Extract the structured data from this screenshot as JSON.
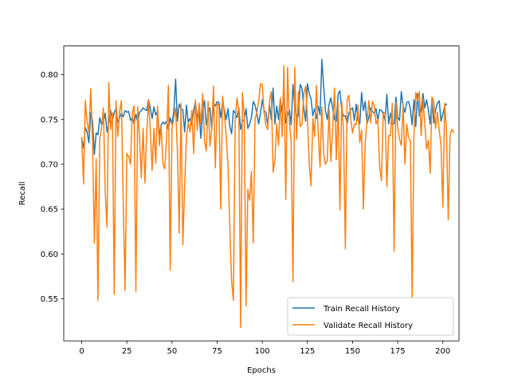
{
  "chart_data": {
    "type": "line",
    "title": "",
    "xlabel": "Epochs",
    "ylabel": "Recall",
    "xlim": [
      -9.95,
      208.95
    ],
    "ylim": [
      0.503,
      0.832
    ],
    "xticks": [
      0,
      25,
      50,
      75,
      100,
      125,
      150,
      175,
      200
    ],
    "xtick_labels": [
      "0",
      "25",
      "50",
      "75",
      "100",
      "125",
      "150",
      "175",
      "200"
    ],
    "yticks": [
      0.55,
      0.6,
      0.65,
      0.7,
      0.75,
      0.8
    ],
    "ytick_labels": [
      "0.55",
      "0.60",
      "0.65",
      "0.70",
      "0.75",
      "0.80"
    ],
    "grid": false,
    "legend_position": "lower-right",
    "series": [
      {
        "name": "Train Recall History",
        "color": "#1f77b4",
        "x_start": 0,
        "x_step": 1,
        "values": [
          0.729,
          0.718,
          0.741,
          0.736,
          0.724,
          0.758,
          0.748,
          0.711,
          0.735,
          0.733,
          0.752,
          0.744,
          0.747,
          0.757,
          0.736,
          0.747,
          0.76,
          0.749,
          0.758,
          0.762,
          0.747,
          0.752,
          0.757,
          0.753,
          0.76,
          0.758,
          0.759,
          0.749,
          0.752,
          0.745,
          0.756,
          0.747,
          0.758,
          0.76,
          0.763,
          0.761,
          0.76,
          0.772,
          0.762,
          0.751,
          0.764,
          0.755,
          0.759,
          0.732,
          0.744,
          0.747,
          0.745,
          0.748,
          0.739,
          0.752,
          0.745,
          0.759,
          0.795,
          0.748,
          0.767,
          0.762,
          0.761,
          0.736,
          0.766,
          0.747,
          0.751,
          0.744,
          0.761,
          0.769,
          0.752,
          0.758,
          0.729,
          0.758,
          0.771,
          0.744,
          0.757,
          0.763,
          0.739,
          0.768,
          0.765,
          0.77,
          0.769,
          0.752,
          0.769,
          0.761,
          0.75,
          0.762,
          0.742,
          0.734,
          0.76,
          0.757,
          0.752,
          0.763,
          0.739,
          0.748,
          0.75,
          0.762,
          0.74,
          0.745,
          0.752,
          0.77,
          0.766,
          0.757,
          0.745,
          0.757,
          0.772,
          0.76,
          0.758,
          0.744,
          0.766,
          0.75,
          0.785,
          0.745,
          0.765,
          0.75,
          0.773,
          0.758,
          0.781,
          0.746,
          0.755,
          0.761,
          0.744,
          0.789,
          0.765,
          0.752,
          0.754,
          0.789,
          0.785,
          0.762,
          0.748,
          0.79,
          0.779,
          0.773,
          0.754,
          0.762,
          0.751,
          0.765,
          0.755,
          0.817,
          0.787,
          0.76,
          0.75,
          0.767,
          0.774,
          0.762,
          0.75,
          0.748,
          0.778,
          0.782,
          0.76,
          0.754,
          0.754,
          0.745,
          0.757,
          0.761,
          0.763,
          0.749,
          0.767,
          0.749,
          0.745,
          0.78,
          0.76,
          0.77,
          0.745,
          0.752,
          0.763,
          0.759,
          0.757,
          0.762,
          0.749,
          0.761,
          0.76,
          0.756,
          0.749,
          0.778,
          0.745,
          0.757,
          0.745,
          0.745,
          0.775,
          0.752,
          0.749,
          0.781,
          0.765,
          0.758,
          0.769,
          0.77,
          0.762,
          0.744,
          0.772,
          0.742,
          0.779,
          0.754,
          0.76,
          0.779,
          0.763,
          0.772,
          0.76,
          0.745,
          0.773,
          0.746,
          0.761,
          0.768,
          0.771,
          0.748,
          0.756,
          0.765,
          0.767
        ]
      },
      {
        "name": "Validate Recall History",
        "color": "#ff7f0e",
        "x_start": 0,
        "x_step": 1,
        "values": [
          0.73,
          0.678,
          0.771,
          0.747,
          0.735,
          0.784,
          0.725,
          0.612,
          0.706,
          0.548,
          0.728,
          0.741,
          0.763,
          0.67,
          0.63,
          0.791,
          0.739,
          0.757,
          0.555,
          0.771,
          0.731,
          0.759,
          0.771,
          0.657,
          0.559,
          0.712,
          0.709,
          0.7,
          0.757,
          0.765,
          0.558,
          0.764,
          0.731,
          0.685,
          0.74,
          0.679,
          0.735,
          0.771,
          0.738,
          0.693,
          0.74,
          0.701,
          0.765,
          0.721,
          0.743,
          0.7,
          0.695,
          0.73,
          0.788,
          0.582,
          0.74,
          0.752,
          0.763,
          0.715,
          0.623,
          0.768,
          0.61,
          0.675,
          0.731,
          0.746,
          0.736,
          0.76,
          0.712,
          0.772,
          0.738,
          0.768,
          0.745,
          0.779,
          0.726,
          0.715,
          0.77,
          0.72,
          0.74,
          0.787,
          0.696,
          0.768,
          0.765,
          0.65,
          0.776,
          0.757,
          0.732,
          0.699,
          0.631,
          0.57,
          0.548,
          0.75,
          0.774,
          0.76,
          0.518,
          0.78,
          0.755,
          0.542,
          0.672,
          0.66,
          0.692,
          0.612,
          0.751,
          0.758,
          0.77,
          0.79,
          0.789,
          0.758,
          0.743,
          0.739,
          0.771,
          0.781,
          0.691,
          0.705,
          0.745,
          0.721,
          0.774,
          0.731,
          0.81,
          0.661,
          0.808,
          0.747,
          0.725,
          0.569,
          0.808,
          0.728,
          0.781,
          0.742,
          0.745,
          0.779,
          0.787,
          0.751,
          0.701,
          0.676,
          0.751,
          0.731,
          0.788,
          0.734,
          0.697,
          0.764,
          0.711,
          0.7,
          0.704,
          0.761,
          0.703,
          0.74,
          0.785,
          0.705,
          0.768,
          0.649,
          0.77,
          0.736,
          0.606,
          0.772,
          0.777,
          0.75,
          0.735,
          0.745,
          0.744,
          0.766,
          0.724,
          0.738,
          0.65,
          0.725,
          0.747,
          0.771,
          0.746,
          0.77,
          0.766,
          0.745,
          0.75,
          0.698,
          0.682,
          0.758,
          0.757,
          0.675,
          0.732,
          0.732,
          0.768,
          0.603,
          0.769,
          0.741,
          0.728,
          0.721,
          0.768,
          0.7,
          0.745,
          0.73,
          0.726,
          0.55,
          0.733,
          0.78,
          0.77,
          0.781,
          0.732,
          0.773,
          0.745,
          0.717,
          0.727,
          0.69,
          0.775,
          0.77,
          0.74,
          0.758,
          0.738,
          0.721,
          0.652,
          0.768,
          0.738,
          0.638,
          0.732,
          0.739,
          0.736
        ]
      }
    ]
  }
}
